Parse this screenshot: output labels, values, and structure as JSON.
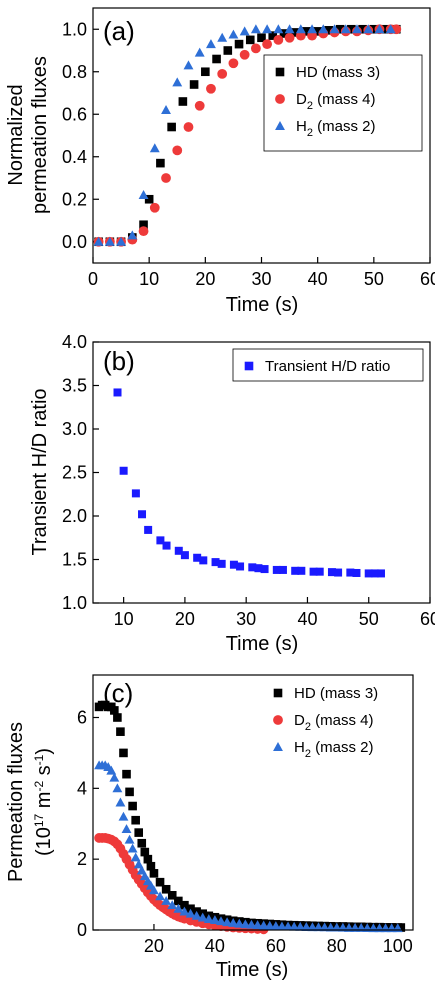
{
  "chart_data": [
    {
      "type": "scatter",
      "panel_label": "(a)",
      "xlabel": "Time (s)",
      "ylabel": [
        "Normalized",
        "permeation fluxes"
      ],
      "xlim": [
        0,
        60
      ],
      "ylim": [
        -0.1,
        1.1
      ],
      "xticks": [
        "0",
        "10",
        "20",
        "30",
        "40",
        "50",
        "60"
      ],
      "yticks": [
        "0.0",
        "0.2",
        "0.4",
        "0.6",
        "0.8",
        "1.0"
      ],
      "legend_position": "right",
      "series": [
        {
          "name": "HD (mass 3)",
          "legend_main": "HD",
          "legend_sub": "",
          "legend_rest": " (mass 3)",
          "marker": "square",
          "color": "#000000",
          "x": [
            1,
            3,
            5,
            7,
            9,
            10,
            12,
            14,
            16,
            18,
            20,
            22,
            24,
            26,
            28,
            30,
            32,
            34,
            36,
            38,
            40,
            42,
            44,
            46,
            48,
            50,
            52,
            54
          ],
          "y": [
            0,
            0,
            0,
            0.02,
            0.08,
            0.2,
            0.37,
            0.54,
            0.66,
            0.74,
            0.8,
            0.86,
            0.9,
            0.93,
            0.95,
            0.96,
            0.97,
            0.98,
            0.985,
            0.99,
            0.99,
            0.995,
            1,
            1,
            1,
            1,
            1,
            1
          ]
        },
        {
          "name": "D2 (mass 4)",
          "legend_main": "D",
          "legend_sub": "2",
          "legend_rest": "  (mass 4)",
          "marker": "circle",
          "color": "#ee3a3a",
          "x": [
            1,
            3,
            5,
            7,
            9,
            11,
            13,
            15,
            17,
            19,
            21,
            23,
            25,
            27,
            29,
            31,
            33,
            35,
            37,
            39,
            41,
            43,
            45,
            47,
            49,
            51,
            53,
            54
          ],
          "y": [
            0,
            0,
            0,
            0.01,
            0.05,
            0.16,
            0.3,
            0.43,
            0.54,
            0.64,
            0.72,
            0.79,
            0.84,
            0.88,
            0.91,
            0.93,
            0.95,
            0.96,
            0.97,
            0.97,
            0.98,
            0.985,
            0.99,
            0.99,
            0.995,
            1,
            1,
            1
          ]
        },
        {
          "name": "H2 (mass 2)",
          "legend_main": "H",
          "legend_sub": "2",
          "legend_rest": "  (mass 2)",
          "marker": "triangle",
          "color": "#2e6fd6",
          "x": [
            1,
            3,
            5,
            7,
            9,
            11,
            13,
            15,
            17,
            19,
            21,
            23,
            25,
            27,
            29,
            31,
            33,
            35,
            37,
            39,
            41,
            43,
            45,
            47,
            49,
            51,
            53
          ],
          "y": [
            0,
            0,
            0,
            0.03,
            0.22,
            0.44,
            0.62,
            0.75,
            0.83,
            0.89,
            0.93,
            0.96,
            0.975,
            0.99,
            1,
            1,
            1,
            1,
            1,
            1,
            1,
            1,
            1,
            1,
            1,
            1,
            1
          ]
        }
      ]
    },
    {
      "type": "scatter",
      "panel_label": "(b)",
      "xlabel": "Time (s)",
      "ylabel": [
        "Transient H/D ratio"
      ],
      "xlim": [
        5,
        60
      ],
      "ylim": [
        1.0,
        4.0
      ],
      "xticks": [
        "10",
        "20",
        "30",
        "40",
        "50",
        "60"
      ],
      "yticks": [
        "1.0",
        "1.5",
        "2.0",
        "2.5",
        "3.0",
        "3.5",
        "4.0"
      ],
      "legend_position": "top-right",
      "series": [
        {
          "name": "Transient H/D ratio",
          "legend_main": "Transient H/D ratio",
          "legend_sub": "",
          "legend_rest": "",
          "marker": "square",
          "color": "#1a1aff",
          "x": [
            9,
            10,
            12,
            13,
            14,
            16,
            17,
            19,
            20,
            22,
            23,
            25,
            26,
            28,
            29,
            31,
            32,
            33,
            35,
            36,
            38,
            39,
            41,
            42,
            44,
            45,
            47,
            48,
            50,
            51,
            52
          ],
          "y": [
            3.42,
            2.52,
            2.26,
            2.02,
            1.84,
            1.72,
            1.66,
            1.6,
            1.55,
            1.52,
            1.49,
            1.47,
            1.45,
            1.44,
            1.42,
            1.41,
            1.4,
            1.39,
            1.38,
            1.38,
            1.37,
            1.37,
            1.36,
            1.36,
            1.355,
            1.35,
            1.35,
            1.345,
            1.34,
            1.34,
            1.34
          ]
        }
      ]
    },
    {
      "type": "scatter",
      "panel_label": "(c)",
      "xlabel": "Time (s)",
      "ylabel": [
        "Permeation fluxes",
        "(10^17 m^-2 s^-1)"
      ],
      "xlim": [
        0,
        105
      ],
      "ylim": [
        0,
        7.2
      ],
      "xticks": [
        "20",
        "40",
        "60",
        "80",
        "100"
      ],
      "yticks": [
        "0",
        "2",
        "4",
        "6"
      ],
      "legend_position": "top-right",
      "series": [
        {
          "name": "HD (mass 3)",
          "legend_main": "HD",
          "legend_sub": "",
          "legend_rest": " (mass 3)",
          "marker": "square",
          "color": "#000000",
          "x": [
            2,
            3,
            4,
            5,
            6,
            7,
            8,
            9,
            10,
            11,
            12,
            13,
            14,
            15,
            16,
            17,
            18,
            19,
            20,
            22,
            24,
            26,
            28,
            30,
            32,
            34,
            36,
            38,
            40,
            42,
            44,
            46,
            48,
            50,
            52,
            54,
            56,
            58,
            60,
            62,
            64,
            66,
            68,
            70,
            72,
            74,
            76,
            78,
            80,
            82,
            84,
            86,
            88,
            90,
            92,
            94,
            96,
            98,
            100,
            101
          ],
          "y": [
            6.3,
            6.35,
            6.35,
            6.3,
            6.3,
            6.2,
            6.0,
            5.6,
            5.0,
            4.4,
            3.9,
            3.5,
            3.1,
            2.75,
            2.45,
            2.2,
            2.0,
            1.8,
            1.6,
            1.35,
            1.15,
            0.98,
            0.82,
            0.7,
            0.6,
            0.52,
            0.46,
            0.4,
            0.36,
            0.32,
            0.29,
            0.26,
            0.24,
            0.22,
            0.2,
            0.19,
            0.18,
            0.17,
            0.16,
            0.15,
            0.14,
            0.135,
            0.13,
            0.125,
            0.12,
            0.115,
            0.11,
            0.105,
            0.1,
            0.1,
            0.095,
            0.09,
            0.09,
            0.085,
            0.08,
            0.08,
            0.075,
            0.075,
            0.07,
            0.07
          ]
        },
        {
          "name": "D2 (mass 4)",
          "legend_main": "D",
          "legend_sub": "2",
          "legend_rest": "  (mass 4)",
          "marker": "circle",
          "color": "#ee3a3a",
          "x": [
            2,
            3,
            4,
            5,
            6,
            7,
            8,
            9,
            10,
            11,
            12,
            13,
            14,
            15,
            16,
            17,
            18,
            19,
            20,
            21,
            22,
            23,
            24,
            25,
            26,
            27,
            28,
            29,
            30,
            32,
            34,
            36,
            38,
            40,
            42,
            44,
            46,
            48,
            50,
            52,
            54,
            56
          ],
          "y": [
            2.6,
            2.6,
            2.6,
            2.58,
            2.55,
            2.5,
            2.42,
            2.3,
            2.15,
            2.0,
            1.85,
            1.7,
            1.55,
            1.42,
            1.3,
            1.18,
            1.06,
            0.96,
            0.86,
            0.78,
            0.7,
            0.64,
            0.58,
            0.52,
            0.47,
            0.42,
            0.38,
            0.35,
            0.32,
            0.27,
            0.23,
            0.19,
            0.16,
            0.13,
            0.11,
            0.09,
            0.07,
            0.06,
            0.05,
            0.04,
            0.03,
            0.02
          ]
        },
        {
          "name": "H2 (mass 2)",
          "legend_main": "H",
          "legend_sub": "2",
          "legend_rest": "  (mass 2)",
          "marker": "triangle",
          "color": "#2e6fd6",
          "x": [
            2,
            3,
            4,
            5,
            6,
            7,
            8,
            9,
            10,
            11,
            12,
            13,
            14,
            15,
            16,
            17,
            18,
            19,
            20,
            22,
            24,
            26,
            28,
            30,
            32,
            34,
            36,
            38,
            40,
            42,
            44,
            46,
            48,
            50,
            52,
            54,
            56,
            58,
            60,
            62,
            64,
            66,
            68,
            70,
            72,
            74,
            76,
            78,
            80,
            82,
            84,
            86,
            88,
            90,
            92,
            94,
            96,
            98,
            100
          ],
          "y": [
            4.65,
            4.65,
            4.65,
            4.6,
            4.5,
            4.3,
            4.0,
            3.6,
            3.2,
            2.85,
            2.55,
            2.3,
            2.05,
            1.85,
            1.68,
            1.52,
            1.38,
            1.25,
            1.12,
            0.95,
            0.82,
            0.7,
            0.6,
            0.52,
            0.46,
            0.4,
            0.35,
            0.31,
            0.28,
            0.25,
            0.22,
            0.2,
            0.18,
            0.16,
            0.15,
            0.14,
            0.13,
            0.12,
            0.11,
            0.1,
            0.1,
            0.095,
            0.09,
            0.085,
            0.08,
            0.08,
            0.075,
            0.07,
            0.07,
            0.065,
            0.06,
            0.06,
            0.06,
            0.055,
            0.05,
            0.05,
            0.05,
            0.05,
            0.05
          ]
        }
      ]
    }
  ]
}
